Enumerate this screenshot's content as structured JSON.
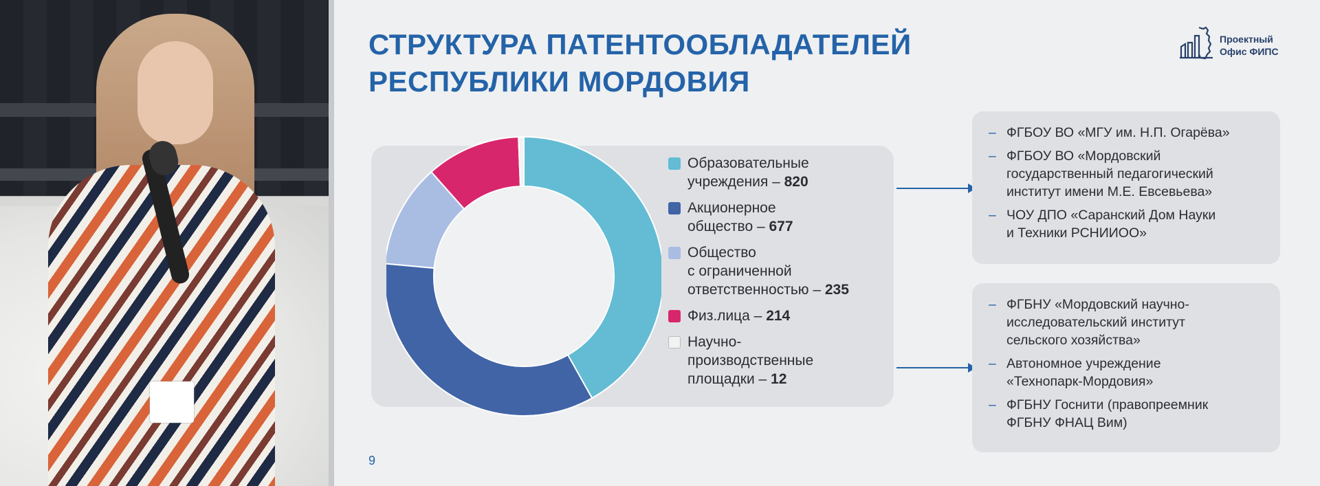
{
  "slide": {
    "title": "СТРУКТУРА ПАТЕНТООБЛАДАТЕЛЕЙ\nРЕСПУБЛИКИ МОРДОВИЯ",
    "logo": {
      "line1": "Проектный",
      "line2": "Офис ФИПС"
    },
    "page_number": "9"
  },
  "chart_data": {
    "type": "pie",
    "donut": true,
    "categories": [
      "Образовательные учреждения",
      "Акционерное общество",
      "Общество с ограниченной ответственностью",
      "Физ.лица",
      "Научно-производственные площадки"
    ],
    "values": [
      820,
      677,
      235,
      214,
      12
    ],
    "colors": [
      "#63bcd4",
      "#4064a6",
      "#a9bde3",
      "#d8266c",
      "#f2f2f2"
    ],
    "legend": [
      {
        "label": "Образовательные\nучреждения – ",
        "value": "820"
      },
      {
        "label": "Акционерное\nобщество – ",
        "value": "677"
      },
      {
        "label": "Общество\nс ограниченной\nответственностью – ",
        "value": "235"
      },
      {
        "label": "Физ.лица – ",
        "value": "214"
      },
      {
        "label": "Научно-\nпроизводственные\nплощадки – ",
        "value": "12"
      }
    ]
  },
  "org_groups": [
    {
      "items": [
        "ФГБОУ ВО «МГУ им. Н.П. Огарёва»",
        "ФГБОУ ВО «Мордовский\nгосударственный педагогический\nинститут имени М.Е. Евсевьева»",
        "ЧОУ ДПО «Саранский Дом Науки\nи Техники РСНИИОО»"
      ]
    },
    {
      "items": [
        "ФГБНУ «Мордовский научно-\nисследовательский институт\nсельского хозяйства»",
        "Автономное учреждение\n«Технопарк-Мордовия»",
        "ФГБНУ Госнити (правопреемник\nФГБНУ ФНАЦ Вим)"
      ]
    }
  ]
}
